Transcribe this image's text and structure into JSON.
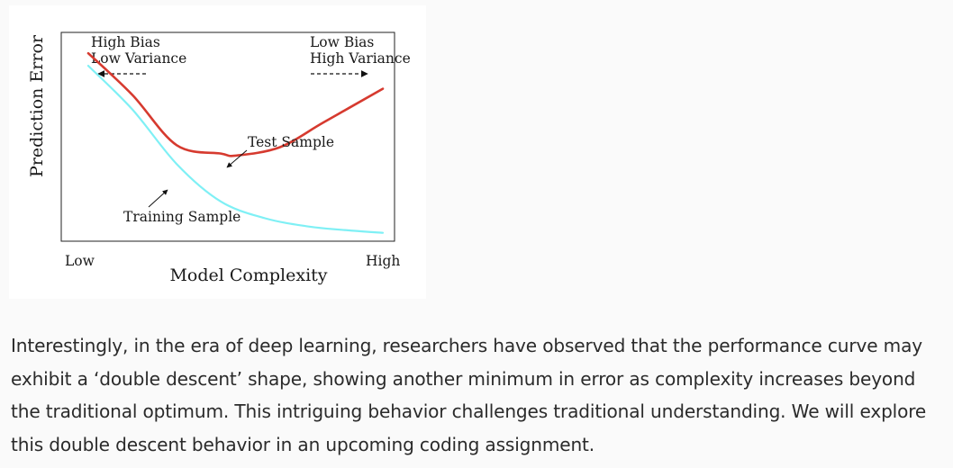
{
  "figure": {
    "y_axis_label": "Prediction Error",
    "x_axis_label": "Model Complexity",
    "x_tick_low": "Low",
    "x_tick_high": "High",
    "left_annotation": {
      "line1": "High Bias",
      "line2": "Low Variance"
    },
    "right_annotation": {
      "line1": "Low Bias",
      "line2": "High Variance"
    },
    "test_label": "Test Sample",
    "training_label": "Training Sample",
    "colors": {
      "test_curve": "#d63a2f",
      "training_curve": "#7ff0f5",
      "frame": "#222222"
    }
  },
  "chart_data": {
    "type": "line",
    "title": "",
    "xlabel": "Model Complexity",
    "ylabel": "Prediction Error",
    "x_ticks": [
      "Low",
      "High"
    ],
    "axis_values_numeric": false,
    "series": [
      {
        "name": "Test Sample",
        "x": [
          0.0,
          0.15,
          0.3,
          0.45,
          0.5,
          0.65,
          0.8,
          1.0
        ],
        "y": [
          0.9,
          0.7,
          0.46,
          0.42,
          0.41,
          0.45,
          0.57,
          0.73
        ]
      },
      {
        "name": "Training Sample",
        "x": [
          0.0,
          0.15,
          0.3,
          0.45,
          0.6,
          0.75,
          0.9,
          1.0
        ],
        "y": [
          0.84,
          0.63,
          0.37,
          0.19,
          0.11,
          0.07,
          0.05,
          0.04
        ]
      }
    ],
    "annotations": [
      "High Bias / Low Variance",
      "Low Bias / High Variance",
      "Test Sample",
      "Training Sample"
    ],
    "grid": false,
    "legend": "none"
  },
  "body": {
    "paragraph": "Interestingly, in the era of deep learning, researchers have observed that the performance curve may exhibit a ‘double descent’ shape, showing another minimum in error as complexity increases beyond the traditional optimum. This intriguing behavior challenges traditional understanding. We will explore this double descent behavior in an upcoming coding assignment."
  }
}
